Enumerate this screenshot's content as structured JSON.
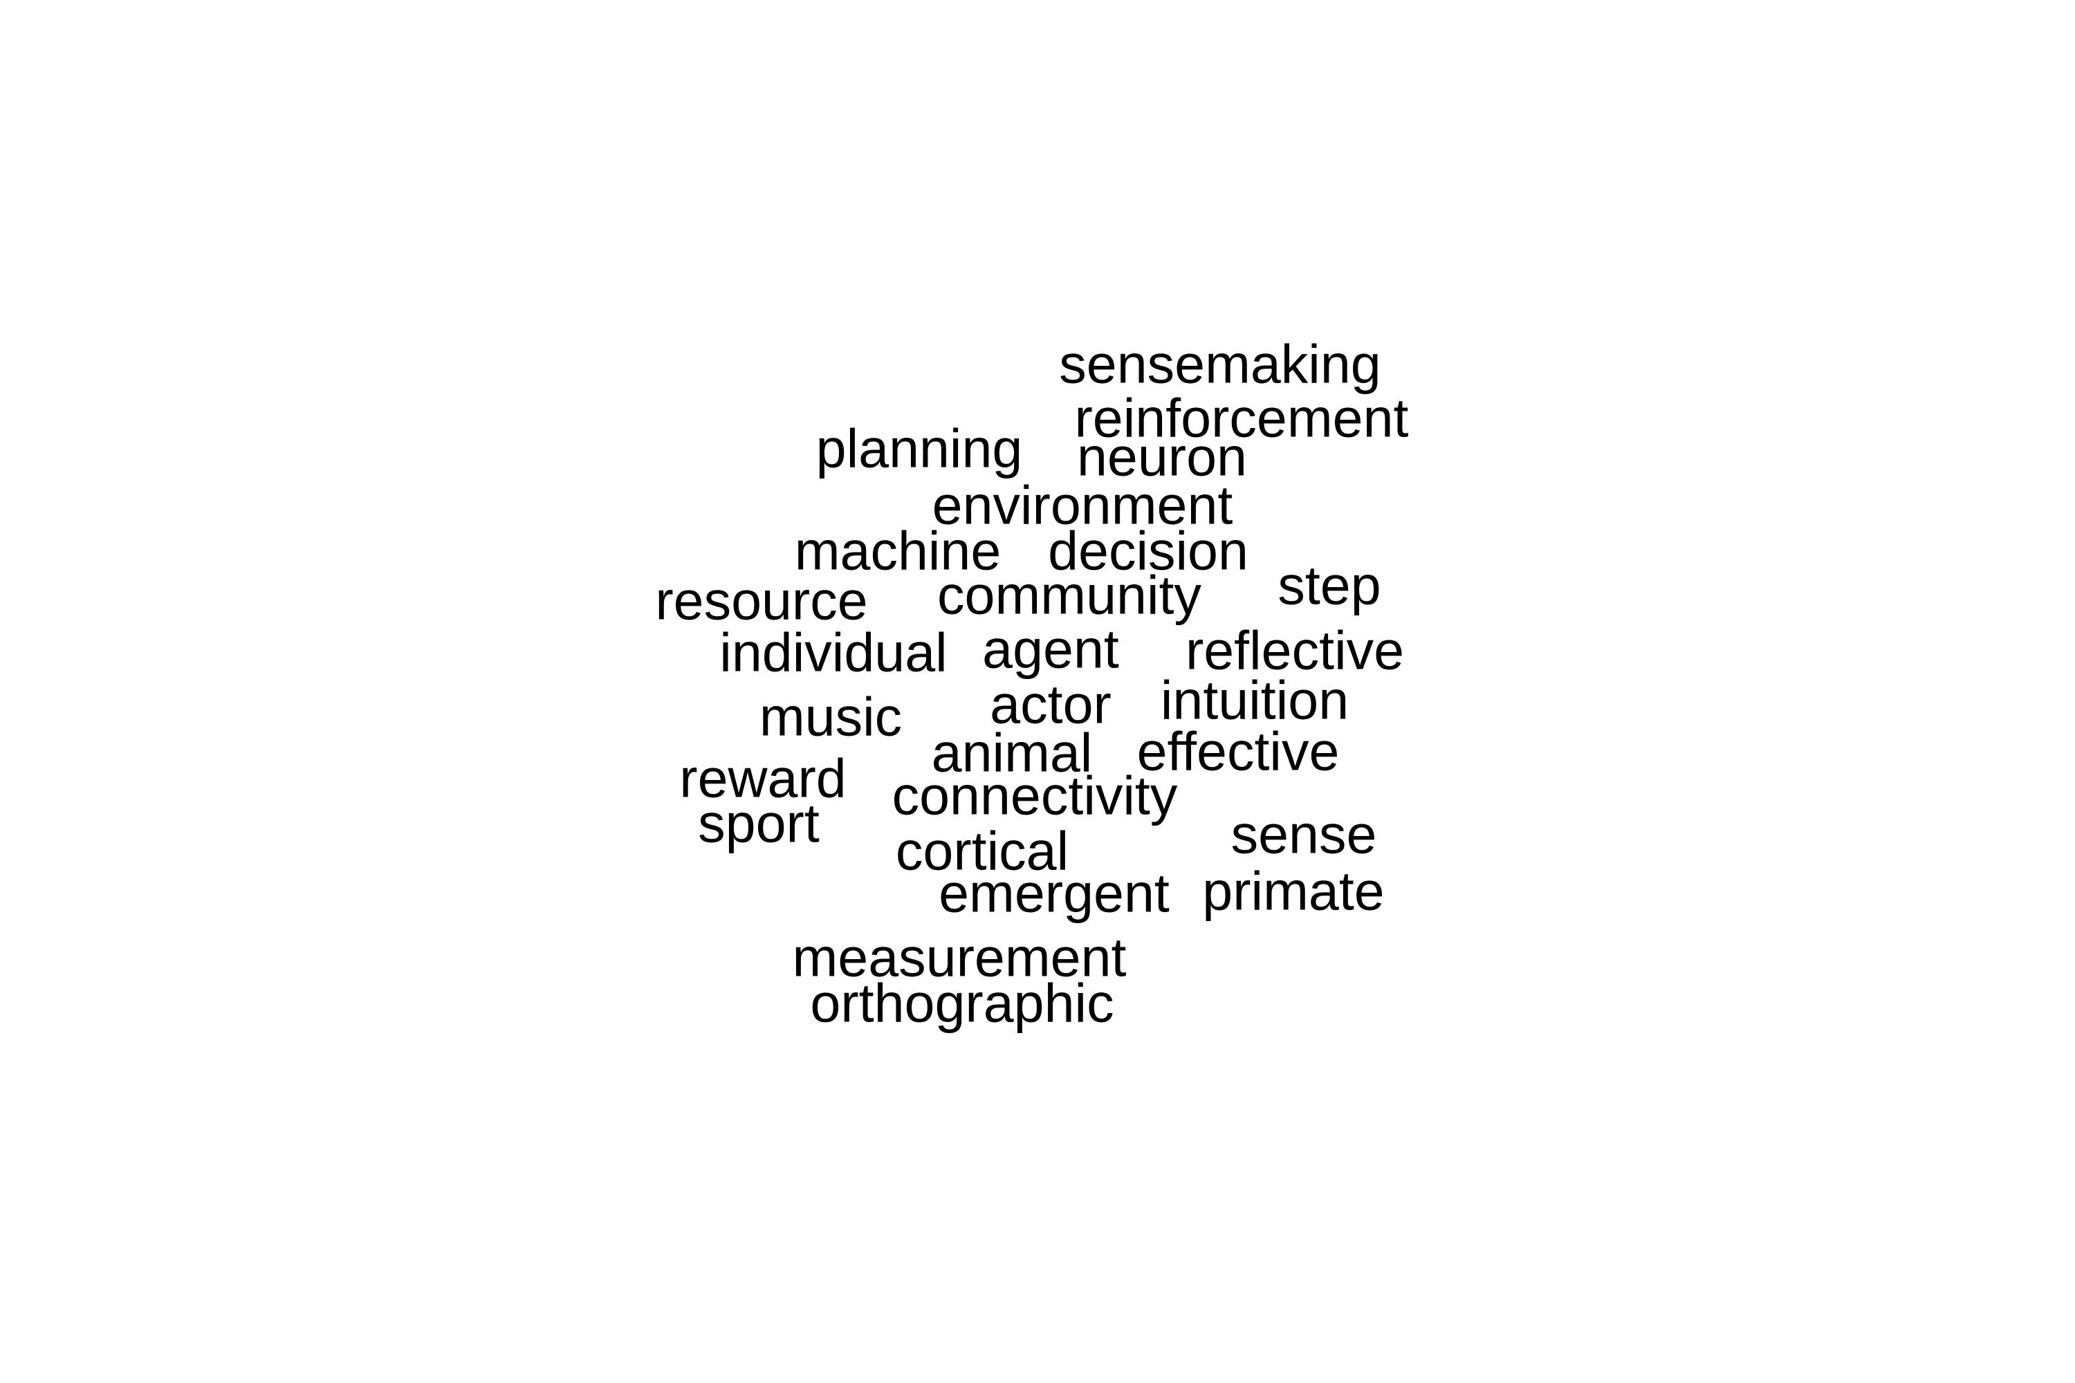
{
  "words": [
    "sensemaking",
    "reinforcement",
    "planning",
    "neuron",
    "environment",
    "machine",
    "decision",
    "step",
    "resource",
    "community",
    "individual",
    "agent",
    "reflective",
    "music",
    "actor",
    "intuition",
    "animal",
    "effective",
    "reward",
    "connectivity",
    "sport",
    "sense",
    "cortical",
    "emergent",
    "primate",
    "measurement",
    "orthographic"
  ],
  "text_color": "#000000"
}
